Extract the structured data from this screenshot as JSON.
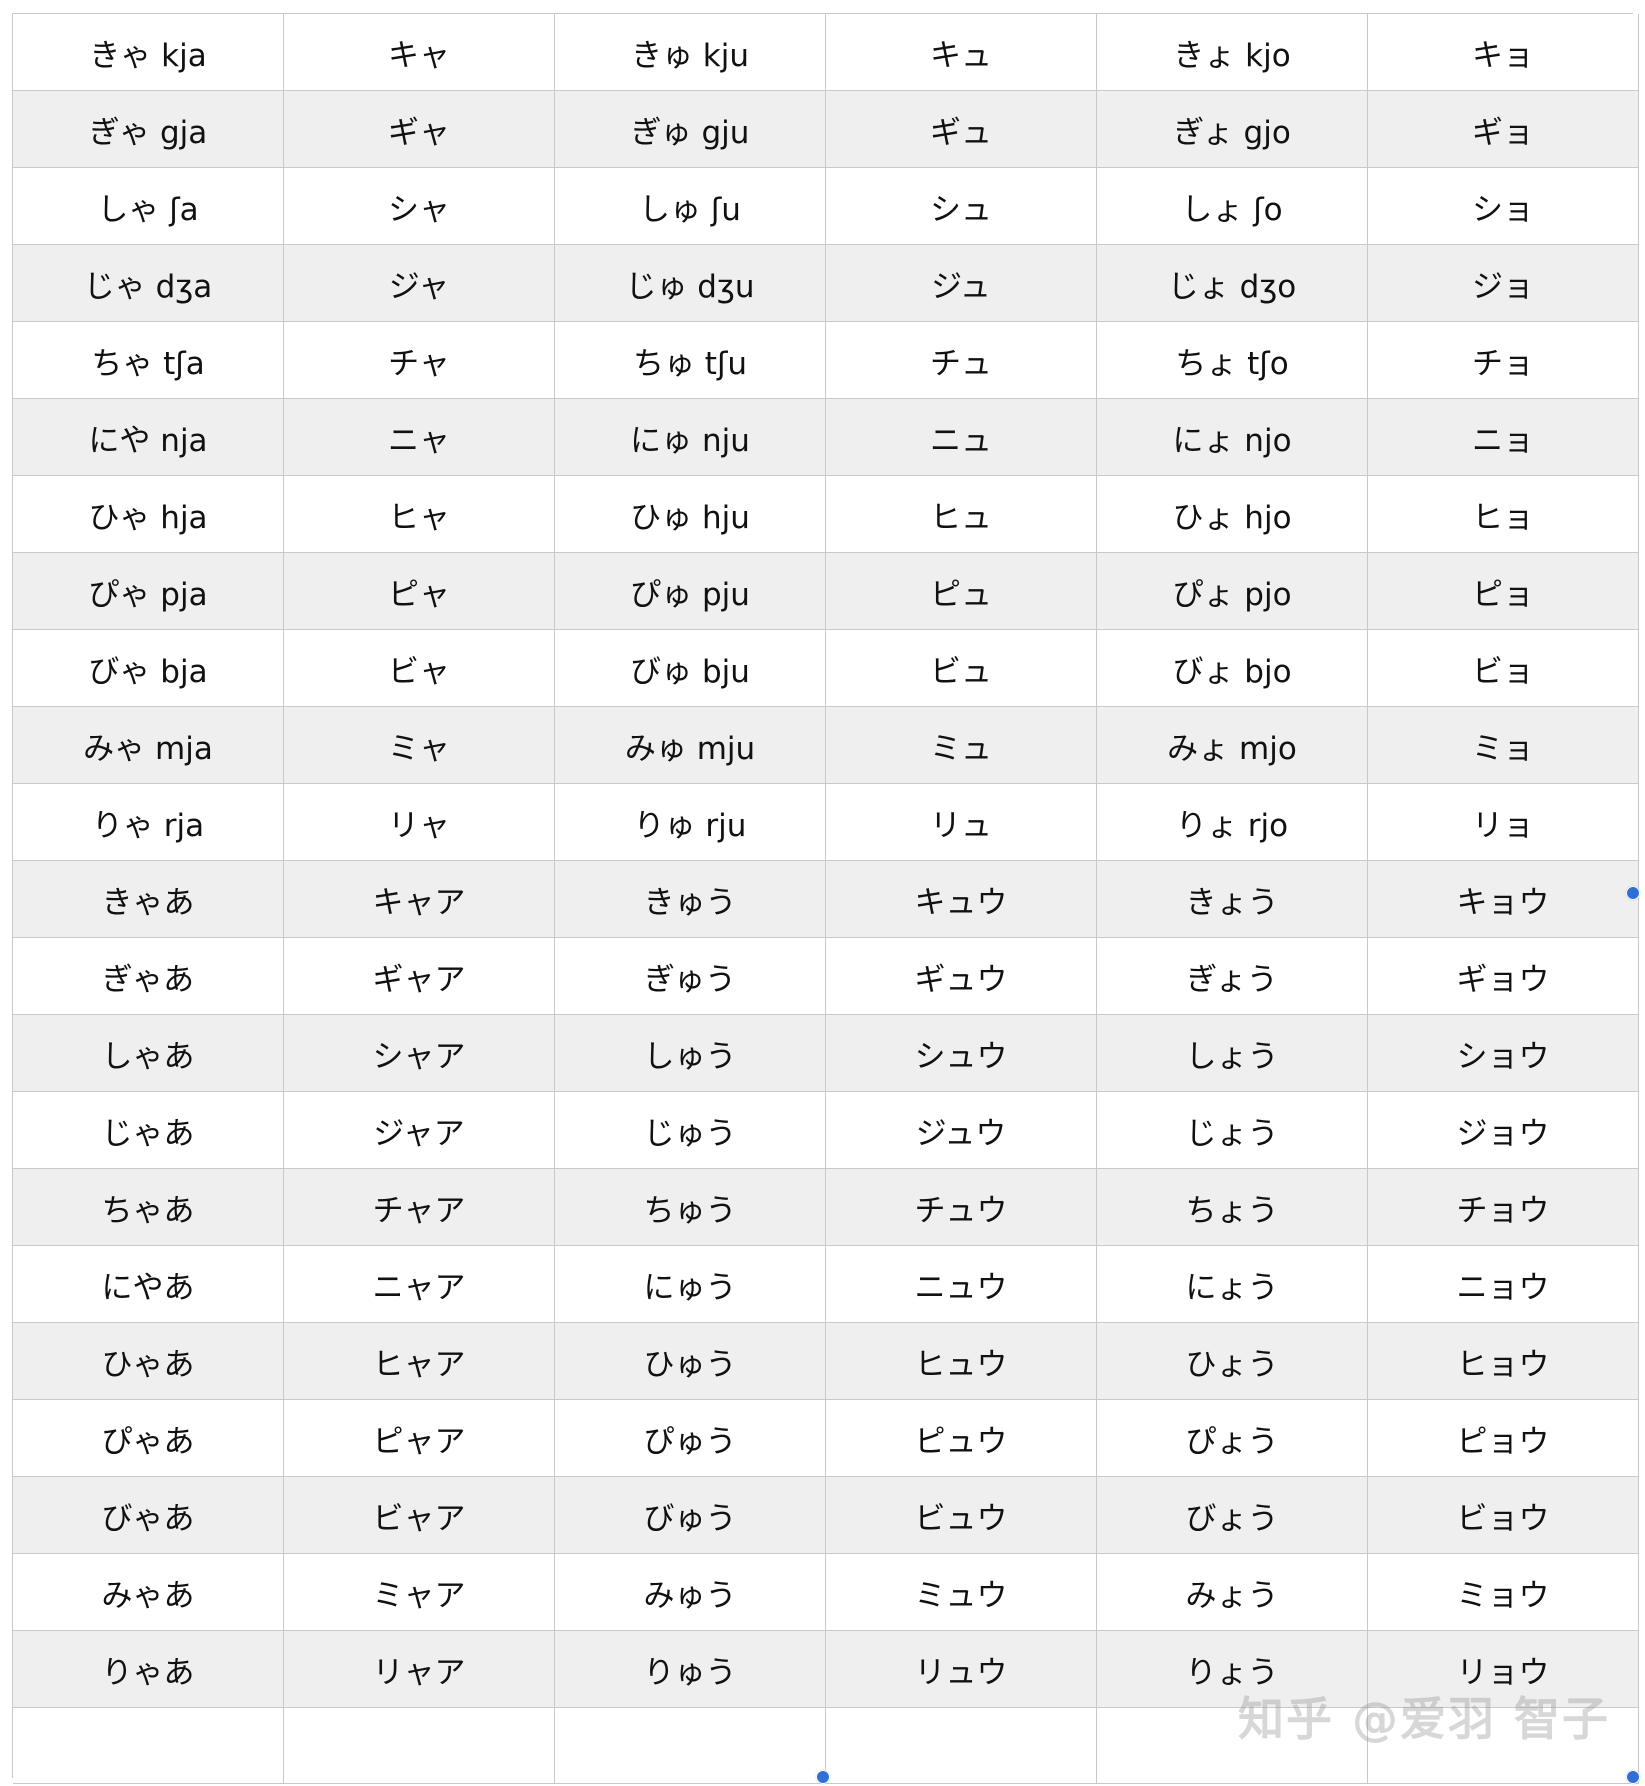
{
  "table": {
    "rows": [
      [
        "きゃ kja",
        "キャ",
        "きゅ kju",
        "キュ",
        "きょ kjo",
        "キョ"
      ],
      [
        "ぎゃ gja",
        "ギャ",
        "ぎゅ gju",
        "ギュ",
        "ぎょ gjo",
        "ギョ"
      ],
      [
        "しゃ ʃa",
        "シャ",
        "しゅ ʃu",
        "シュ",
        "しょ ʃo",
        "ショ"
      ],
      [
        "じゃ dʒa",
        "ジャ",
        "じゅ dʒu",
        "ジュ",
        "じょ dʒo",
        "ジョ"
      ],
      [
        "ちゃ tʃa",
        "チャ",
        "ちゅ tʃu",
        "チュ",
        "ちょ tʃo",
        "チョ"
      ],
      [
        "にや nja",
        "ニャ",
        "にゅ nju",
        "ニュ",
        "にょ njo",
        "ニョ"
      ],
      [
        "ひゃ hja",
        "ヒャ",
        "ひゅ hju",
        "ヒュ",
        "ひょ hjo",
        "ヒョ"
      ],
      [
        "ぴゃ pja",
        "ピャ",
        "ぴゅ pju",
        "ピュ",
        "ぴょ pjo",
        "ピョ"
      ],
      [
        "びゃ bja",
        "ビャ",
        "びゅ bju",
        "ビュ",
        "びょ bjo",
        "ビョ"
      ],
      [
        "みゃ mja",
        "ミャ",
        "みゅ mju",
        "ミュ",
        "みょ mjo",
        "ミョ"
      ],
      [
        "りゃ rja",
        "リャ",
        "りゅ rju",
        "リュ",
        "りょ rjo",
        "リョ"
      ],
      [
        "きゃあ",
        "キャア",
        "きゅう",
        "キュウ",
        "きょう",
        "キョウ"
      ],
      [
        "ぎゃあ",
        "ギャア",
        "ぎゅう",
        "ギュウ",
        "ぎょう",
        "ギョウ"
      ],
      [
        "しゃあ",
        "シャア",
        "しゅう",
        "シュウ",
        "しょう",
        "ショウ"
      ],
      [
        "じゃあ",
        "ジャア",
        "じゅう",
        "ジュウ",
        "じょう",
        "ジョウ"
      ],
      [
        "ちゃあ",
        "チャア",
        "ちゅう",
        "チュウ",
        "ちょう",
        "チョウ"
      ],
      [
        "にやあ",
        "ニャア",
        "にゅう",
        "ニュウ",
        "にょう",
        "ニョウ"
      ],
      [
        "ひゃあ",
        "ヒャア",
        "ひゅう",
        "ヒュウ",
        "ひょう",
        "ヒョウ"
      ],
      [
        "ぴゃあ",
        "ピャア",
        "ぴゅう",
        "ピュウ",
        "ぴょう",
        "ピョウ"
      ],
      [
        "びゃあ",
        "ビャア",
        "びゅう",
        "ビュウ",
        "びょう",
        "ビョウ"
      ],
      [
        "みゃあ",
        "ミャア",
        "みゅう",
        "ミュウ",
        "みょう",
        "ミョウ"
      ],
      [
        "りゃあ",
        "リャア",
        "りゅう",
        "リュウ",
        "りょう",
        "リョウ"
      ]
    ],
    "empty_rows": 1,
    "columns": 6
  },
  "watermark": {
    "text": "知乎 @爱羽 智子"
  },
  "colors": {
    "shaded_row": "#efefef",
    "grid_line": "#c9c9c9",
    "handle": "#2f6fd6"
  }
}
